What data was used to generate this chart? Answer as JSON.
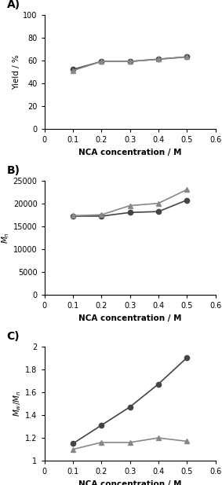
{
  "x": [
    0.1,
    0.2,
    0.3,
    0.4,
    0.5
  ],
  "A": {
    "batch_y": [
      52,
      59,
      59,
      61,
      63
    ],
    "micro_y": [
      51,
      59,
      59,
      61,
      63
    ],
    "ylabel": "Yield / %",
    "ylim": [
      0,
      100
    ],
    "yticks": [
      0,
      20,
      40,
      60,
      80,
      100
    ],
    "label": "A)"
  },
  "B": {
    "batch_y": [
      17200,
      17200,
      18000,
      18200,
      20700
    ],
    "micro_y": [
      17300,
      17500,
      19500,
      20000,
      23000
    ],
    "ylabel": "$M_n$",
    "ylim": [
      0,
      25000
    ],
    "yticks": [
      0,
      5000,
      10000,
      15000,
      20000,
      25000
    ],
    "label": "B)"
  },
  "C": {
    "batch_y": [
      1.15,
      1.31,
      1.47,
      1.67,
      1.9
    ],
    "micro_y": [
      1.1,
      1.16,
      1.16,
      1.2,
      1.17
    ],
    "ylabel": "$M_w/M_n$",
    "ylim": [
      1.0,
      2.0
    ],
    "yticks": [
      1.0,
      1.2,
      1.4,
      1.6,
      1.8,
      2.0
    ],
    "label": "C)"
  },
  "xlabel": "NCA concentration / M",
  "xlim": [
    0,
    0.6
  ],
  "xticks": [
    0,
    0.1,
    0.2,
    0.3,
    0.4,
    0.5,
    0.6
  ],
  "xtick_labels": [
    "0",
    "0.1",
    "0.2",
    "0.3",
    "0.4",
    "0.5",
    "0.6"
  ],
  "batch_color": "#444444",
  "micro_color": "#888888",
  "batch_marker": "o",
  "micro_marker": "^",
  "marker_size": 4.5,
  "line_width": 1.2,
  "label_fontsize": 7.5,
  "tick_fontsize": 7,
  "panel_label_fontsize": 10
}
